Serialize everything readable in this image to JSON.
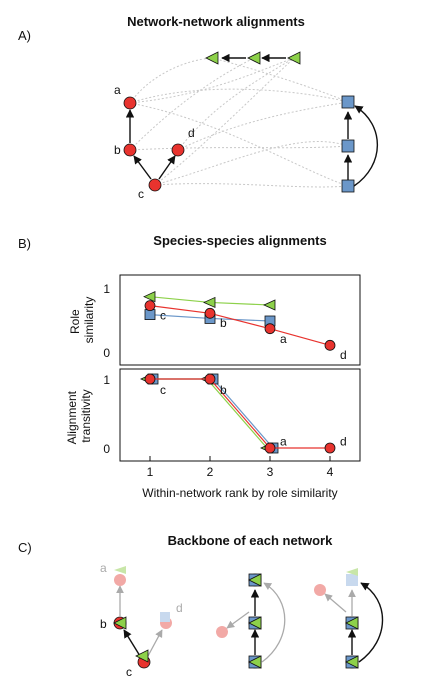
{
  "panels": {
    "a": {
      "label": "A)",
      "title": "Network-network alignments"
    },
    "b": {
      "label": "B)",
      "title": "Species-species alignments"
    },
    "c": {
      "label": "C)",
      "title": "Backbone of each network"
    }
  },
  "species_labels": [
    "a",
    "b",
    "c",
    "d"
  ],
  "colors": {
    "red": "#e8332e",
    "green": "#8dd14a",
    "blue": "#6b97c9"
  },
  "chart_data": [
    {
      "type": "line",
      "ylabel": "Role similarity",
      "ylim": [
        0,
        1
      ],
      "yticks": [
        "0",
        "1"
      ],
      "series": [
        {
          "color": "#8dd14a",
          "marker": "triangle",
          "x": [
            1,
            2,
            3
          ],
          "values": [
            0.88,
            0.79,
            0.75
          ]
        },
        {
          "color": "#6b97c9",
          "marker": "square",
          "x": [
            1,
            2,
            3
          ],
          "values": [
            0.6,
            0.54,
            0.5
          ]
        },
        {
          "color": "#e8332e",
          "marker": "circle",
          "x": [
            1,
            2,
            3,
            4
          ],
          "values": [
            0.74,
            0.62,
            0.38,
            0.12
          ]
        }
      ],
      "point_labels": [
        {
          "text": "c",
          "x": 1,
          "y": 0.62
        },
        {
          "text": "b",
          "x": 2,
          "y": 0.5
        },
        {
          "text": "a",
          "x": 3,
          "y": 0.25
        },
        {
          "text": "d",
          "x": 4,
          "y": 0.0
        }
      ]
    },
    {
      "type": "line",
      "ylabel": "Alignment transitivity",
      "xlabel": "Within-network rank by role similarity",
      "ylim": [
        0,
        1
      ],
      "yticks": [
        "0",
        "1"
      ],
      "xticks": [
        "1",
        "2",
        "3",
        "4"
      ],
      "series": [
        {
          "color": "#8dd14a",
          "marker": "triangle",
          "x": [
            1,
            2,
            3
          ],
          "values": [
            1,
            1,
            0
          ]
        },
        {
          "color": "#6b97c9",
          "marker": "square",
          "x": [
            1,
            2,
            3
          ],
          "values": [
            1,
            1,
            0
          ]
        },
        {
          "color": "#e8332e",
          "marker": "circle",
          "x": [
            1,
            2,
            3,
            4
          ],
          "values": [
            1,
            1,
            0,
            0
          ]
        }
      ],
      "point_labels": [
        {
          "text": "c",
          "x": 1,
          "y": 0.87
        },
        {
          "text": "b",
          "x": 2,
          "y": 0.87
        },
        {
          "text": "a",
          "x": 3,
          "y": 0.12
        },
        {
          "text": "d",
          "x": 4,
          "y": 0.12
        }
      ]
    }
  ]
}
